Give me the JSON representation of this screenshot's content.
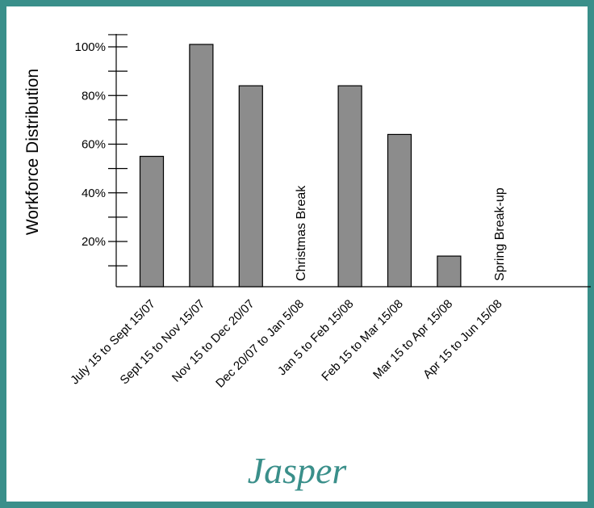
{
  "chart_data": {
    "type": "bar",
    "title": "Jasper",
    "ylabel": "Workforce Distribution",
    "xlabel": "",
    "ylim": [
      0,
      110
    ],
    "yticks": [
      {
        "value": 20,
        "label": "20%"
      },
      {
        "value": 40,
        "label": "40%"
      },
      {
        "value": 60,
        "label": "60%"
      },
      {
        "value": 80,
        "label": "80%"
      },
      {
        "value": 100,
        "label": "100%"
      }
    ],
    "minor_ticks": [
      10,
      30,
      50,
      70,
      90,
      105
    ],
    "categories": [
      "July 15 to Sept 15/07",
      "Sept 15 to Nov 15/07",
      "Nov 15 to Dec 20/07",
      "Dec 20/07 to Jan 5/08",
      "Jan 5 to Feb 15/08",
      "Feb 15 to Mar 15/08",
      "Mar 15 to Apr 15/08",
      "Apr 15 to Jun 15/08"
    ],
    "values": [
      55,
      101,
      84,
      null,
      84,
      64,
      14,
      null
    ],
    "annotations": [
      {
        "category_index": 3,
        "text": "Christmas Break"
      },
      {
        "category_index": 7,
        "text": "Spring Break-up"
      }
    ],
    "colors": {
      "bar": "#8c8c8c",
      "bar_stroke": "#000000",
      "frame": "#3a8f8a",
      "title": "#3a8f8a"
    },
    "grid": false
  }
}
